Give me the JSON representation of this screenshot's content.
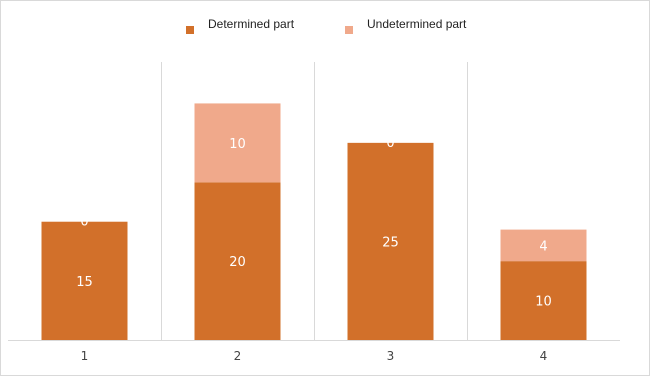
{
  "chart_data": {
    "type": "bar",
    "stacked": true,
    "categories": [
      "1",
      "2",
      "3",
      "4"
    ],
    "series": [
      {
        "name": "Determined part",
        "values": [
          15,
          20,
          25,
          10
        ],
        "color": "#d2702a"
      },
      {
        "name": "Undetermined part",
        "values": [
          0,
          10,
          0,
          4
        ],
        "color": "#f0a98b"
      }
    ],
    "ylim": [
      0,
      35
    ],
    "grid": "vertical separators",
    "legend": "top-center"
  }
}
